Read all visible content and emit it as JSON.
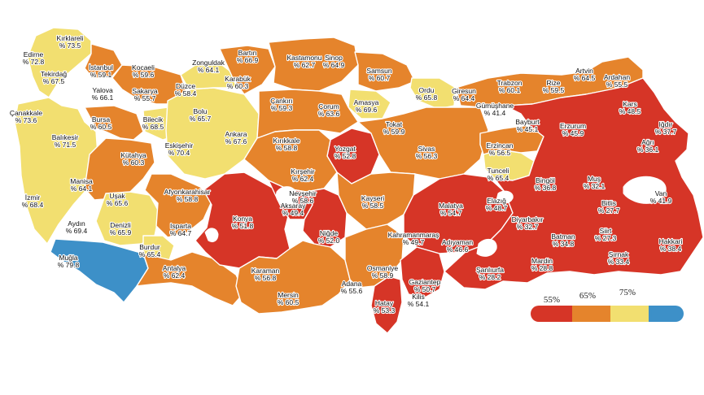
{
  "colors": {
    "below_55": "#d63527",
    "from_55_to_65": "#e5842c",
    "from_65_to_75": "#f2df70",
    "above_75": "#3d90c8"
  },
  "legend": {
    "thresholds": [
      "55%",
      "65%",
      "75%"
    ]
  },
  "provinces": [
    {
      "id": "edirne",
      "name": "Edirne",
      "value": "% 72.8"
    },
    {
      "id": "kirklareli",
      "name": "Kırklareli",
      "value": "% 73.5"
    },
    {
      "id": "tekirdag",
      "name": "Tekirdağ",
      "value": "% 67.5"
    },
    {
      "id": "istanbul",
      "name": "İstanbul",
      "value": "% 59.1"
    },
    {
      "id": "kocaeli",
      "name": "Kocaeli",
      "value": "% 59.6"
    },
    {
      "id": "yalova",
      "name": "Yalova",
      "value": "% 66.1"
    },
    {
      "id": "canakkale",
      "name": "Çanakkale",
      "value": "% 73.6"
    },
    {
      "id": "balikesir",
      "name": "Balıkesir",
      "value": "% 71.5"
    },
    {
      "id": "bursa",
      "name": "Bursa",
      "value": "% 60.5"
    },
    {
      "id": "bilecik",
      "name": "Bilecik",
      "value": "% 68.5"
    },
    {
      "id": "sakarya",
      "name": "Sakarya",
      "value": "% 55.7"
    },
    {
      "id": "duzce",
      "name": "Düzce",
      "value": "% 58.4"
    },
    {
      "id": "zonguldak",
      "name": "Zonguldak",
      "value": "% 64.1"
    },
    {
      "id": "bartin",
      "name": "Bartın",
      "value": "% 66.9"
    },
    {
      "id": "karabuk",
      "name": "Karabük",
      "value": "% 60.3"
    },
    {
      "id": "kastamonu",
      "name": "Kastamonu",
      "value": "% 62.7"
    },
    {
      "id": "sinop",
      "name": "Sinop",
      "value": "% 64.9"
    },
    {
      "id": "samsun",
      "name": "Samsun",
      "value": "% 60.7"
    },
    {
      "id": "ordu",
      "name": "Ordu",
      "value": "% 65.8"
    },
    {
      "id": "giresun",
      "name": "Giresun",
      "value": "% 64.4"
    },
    {
      "id": "trabzon",
      "name": "Trabzon",
      "value": "% 60.1"
    },
    {
      "id": "rize",
      "name": "Rize",
      "value": "% 59.5"
    },
    {
      "id": "artvin",
      "name": "Artvin",
      "value": "% 64.5"
    },
    {
      "id": "ardahan",
      "name": "Ardahan",
      "value": "% 55.5"
    },
    {
      "id": "bolu",
      "name": "Bolu",
      "value": "% 65.7"
    },
    {
      "id": "cankiri",
      "name": "Çankırı",
      "value": "% 59.3"
    },
    {
      "id": "corum",
      "name": "Çorum",
      "value": "% 63.6"
    },
    {
      "id": "amasya",
      "name": "Amasya",
      "value": "% 69.6"
    },
    {
      "id": "tokat",
      "name": "Tokat",
      "value": "% 59.9"
    },
    {
      "id": "gumushane",
      "name": "Gümüşhane",
      "value": "% 41.4"
    },
    {
      "id": "bayburt",
      "name": "Bayburt",
      "value": "% 45.1"
    },
    {
      "id": "erzurum",
      "name": "Erzurum",
      "value": "% 45.9"
    },
    {
      "id": "kars",
      "name": "Kars",
      "value": "% 48.5"
    },
    {
      "id": "igdir",
      "name": "Iğdır",
      "value": "% 37.7"
    },
    {
      "id": "agri",
      "name": "Ağrı",
      "value": "% 36.1"
    },
    {
      "id": "erzincan",
      "name": "Erzincan",
      "value": "% 56.5"
    },
    {
      "id": "sivas",
      "name": "Sivas",
      "value": "% 56.3"
    },
    {
      "id": "yozgat",
      "name": "Yozgat",
      "value": "% 52.8"
    },
    {
      "id": "kirikkale",
      "name": "Kırıkkale",
      "value": "% 58.8"
    },
    {
      "id": "ankara",
      "name": "Ankara",
      "value": "% 67.6"
    },
    {
      "id": "eskisehir",
      "name": "Eskişehir",
      "value": "% 70.4"
    },
    {
      "id": "kutahya",
      "name": "Kütahya",
      "value": "% 60.3"
    },
    {
      "id": "manisa",
      "name": "Manisa",
      "value": "% 64.1"
    },
    {
      "id": "izmir",
      "name": "İzmir",
      "value": "% 68.4"
    },
    {
      "id": "usak",
      "name": "Uşak",
      "value": "% 65.6"
    },
    {
      "id": "afyonkarahisar",
      "name": "Afyonkarahisar",
      "value": "% 58.8"
    },
    {
      "id": "aydin",
      "name": "Aydın",
      "value": "% 69.4"
    },
    {
      "id": "denizli",
      "name": "Denizli",
      "value": "% 65.9"
    },
    {
      "id": "mugla",
      "name": "Muğla",
      "value": "% 79.8"
    },
    {
      "id": "isparta",
      "name": "Isparta",
      "value": "% 64.7"
    },
    {
      "id": "burdur",
      "name": "Burdur",
      "value": "% 65.4"
    },
    {
      "id": "antalya",
      "name": "Antalya",
      "value": "% 62.4"
    },
    {
      "id": "konya",
      "name": "Konya",
      "value": "% 51.8"
    },
    {
      "id": "karaman",
      "name": "Karaman",
      "value": "% 56.8"
    },
    {
      "id": "mersin",
      "name": "Mersin",
      "value": "% 60.5"
    },
    {
      "id": "aksaray",
      "name": "Aksaray",
      "value": "% 49.4"
    },
    {
      "id": "kirsehir",
      "name": "Kırşehir",
      "value": "% 62.4"
    },
    {
      "id": "nevsehir",
      "name": "Nevşehir",
      "value": "% 58.6"
    },
    {
      "id": "nigde",
      "name": "Niğde",
      "value": "% 52.0"
    },
    {
      "id": "kayseri",
      "name": "Kayseri",
      "value": "% 58.5"
    },
    {
      "id": "adana",
      "name": "Adana",
      "value": "% 55.6"
    },
    {
      "id": "osmaniye",
      "name": "Osmaniye",
      "value": "% 58.9"
    },
    {
      "id": "hatay",
      "name": "Hatay",
      "value": "% 53.3"
    },
    {
      "id": "kilis",
      "name": "Kilis",
      "value": "% 54.1"
    },
    {
      "id": "gaziantep",
      "name": "Gaziantep",
      "value": "% 50.7"
    },
    {
      "id": "kahramanmaras",
      "name": "Kahramanmaraş",
      "value": "% 49.7"
    },
    {
      "id": "adiyaman",
      "name": "Adıyaman",
      "value": "% 46.6"
    },
    {
      "id": "malatya",
      "name": "Malatya",
      "value": "% 54.7"
    },
    {
      "id": "tunceli",
      "name": "Tunceli",
      "value": "% 65.4"
    },
    {
      "id": "elazig",
      "name": "Elazığ",
      "value": "% 48.7"
    },
    {
      "id": "bingol",
      "name": "Bingöl",
      "value": "% 36.8"
    },
    {
      "id": "mus",
      "name": "Muş",
      "value": "% 32.1"
    },
    {
      "id": "van",
      "name": "Van",
      "value": "% 41.9"
    },
    {
      "id": "bitlis",
      "name": "Bitlis",
      "value": "% 27.7"
    },
    {
      "id": "diyarbakir",
      "name": "Diyarbakır",
      "value": "% 32.7"
    },
    {
      "id": "sanliurfa",
      "name": "Şanlıurfa",
      "value": "% 28.2"
    },
    {
      "id": "mardin",
      "name": "Mardin",
      "value": "% 28.8"
    },
    {
      "id": "batman",
      "name": "Batman",
      "value": "% 34.8"
    },
    {
      "id": "siirt",
      "name": "Siirt",
      "value": "% 27.3"
    },
    {
      "id": "sirnak",
      "name": "Şırnak",
      "value": "% 33.4"
    },
    {
      "id": "hakkari",
      "name": "Hakkari",
      "value": "% 38.4"
    }
  ]
}
